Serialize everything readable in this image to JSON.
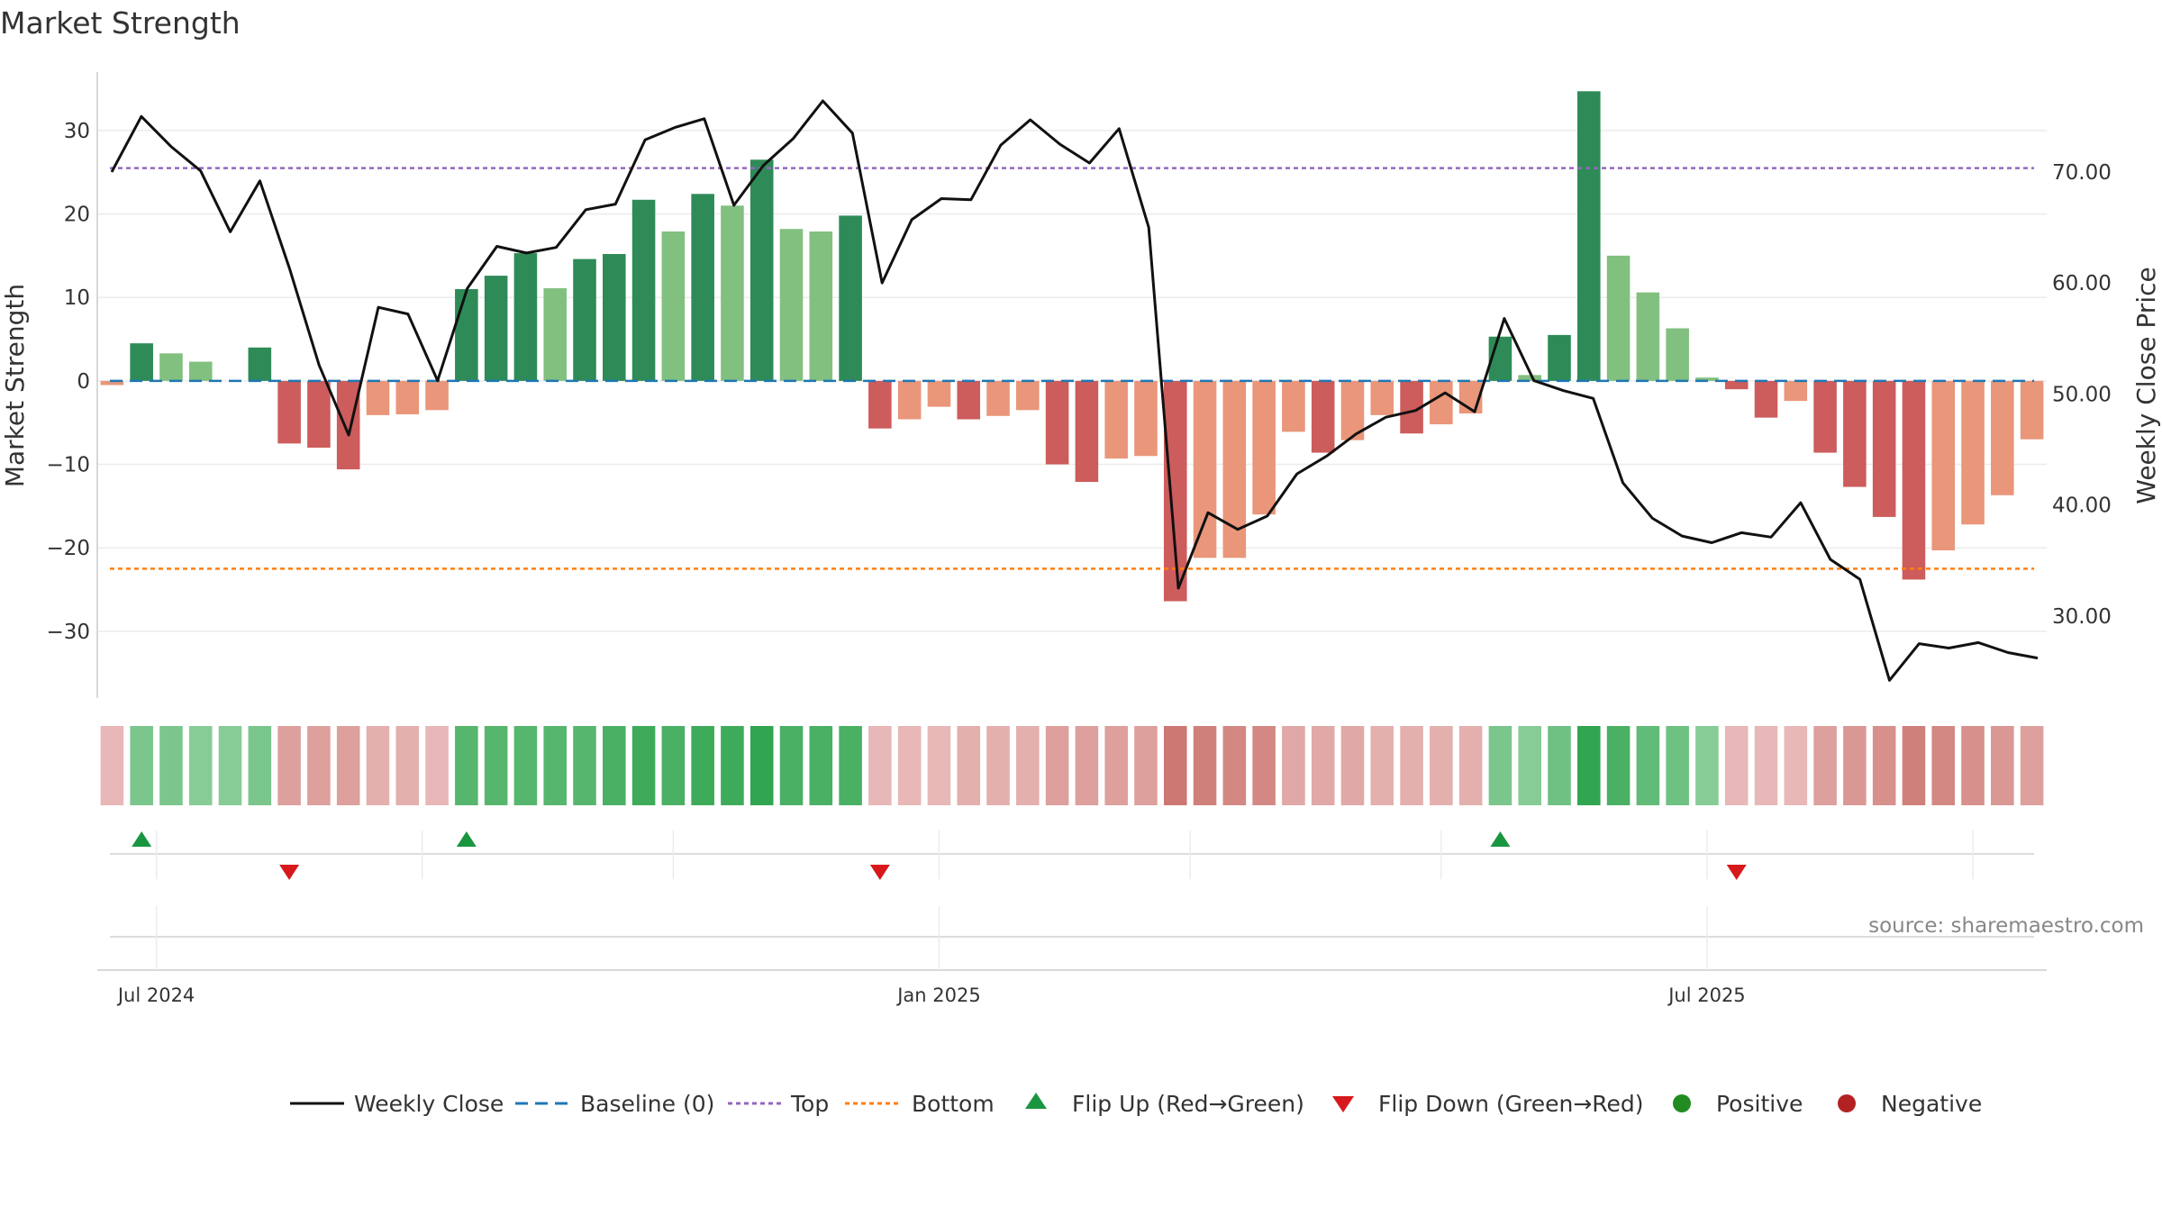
{
  "title": "Market Strength",
  "source": "source: sharemaestro.com",
  "colors": {
    "close_line": "#111111",
    "baseline": "#1f77b4",
    "top": "#9467bd",
    "bottom": "#ff7f0e",
    "strong_positive": "#2e8b57",
    "weak_positive": "#82c07f",
    "strong_negative": "#cd5c5c",
    "weak_negative": "#e9967a",
    "flip_up": "#1a9641",
    "flip_down": "#d7191c",
    "positive": "#228b22",
    "negative": "#b22222"
  },
  "chart_data": {
    "type": "bar",
    "ylabel_left": "Market Strength",
    "ylabel_right": "Weekly Close Price",
    "ylim_left": [
      -38,
      37
    ],
    "ylim_right": [
      22.6,
      79
    ],
    "yticks_left": [
      "30",
      "20",
      "10",
      "0",
      "−10",
      "−20",
      "−30"
    ],
    "yticks_right": [
      "70.00",
      "60.00",
      "50.00",
      "40.00",
      "30.00"
    ],
    "x_tick_labels": [
      "Jul 2024",
      "Jan 2025",
      "Jul 2025"
    ],
    "x_tick_weeks": [
      2,
      28.5,
      54.5
    ],
    "top_line": 25.5,
    "bottom_line": -22.5,
    "baseline": 0,
    "strength": [
      -0.5,
      4.5,
      3.3,
      2.3,
      0,
      4.0,
      -7.5,
      -8.0,
      -10.6,
      -4.1,
      -4.0,
      -3.5,
      11.0,
      12.6,
      15.3,
      11.1,
      14.6,
      15.2,
      21.7,
      17.9,
      22.4,
      21.0,
      26.5,
      18.2,
      17.9,
      19.8,
      -5.7,
      -4.6,
      -3.1,
      -4.6,
      -4.2,
      -3.5,
      -10.0,
      -12.1,
      -9.3,
      -9.0,
      -26.4,
      -21.2,
      -21.2,
      -16.0,
      -6.1,
      -8.6,
      -7.1,
      -4.1,
      -6.3,
      -5.2,
      -3.9,
      5.3,
      0.7,
      5.5,
      34.7,
      15.0,
      10.6,
      6.3,
      0.4,
      -1.0,
      -4.4,
      -2.4,
      -8.6,
      -12.7,
      -16.3,
      -23.8,
      -20.3,
      -17.2,
      -13.7,
      -7.0
    ],
    "strength_shade": [
      "weak",
      "strong",
      "weak",
      "weak",
      "weak",
      "strong",
      "strong",
      "strong",
      "strong",
      "weak",
      "weak",
      "weak",
      "strong",
      "strong",
      "strong",
      "weak",
      "strong",
      "strong",
      "strong",
      "weak",
      "strong",
      "weak",
      "strong",
      "weak",
      "weak",
      "strong",
      "strong",
      "weak",
      "weak",
      "strong",
      "weak",
      "weak",
      "strong",
      "strong",
      "weak",
      "weak",
      "strong",
      "weak",
      "weak",
      "weak",
      "weak",
      "strong",
      "weak",
      "weak",
      "strong",
      "weak",
      "weak",
      "strong",
      "weak",
      "strong",
      "strong",
      "weak",
      "weak",
      "weak",
      "weak",
      "strong",
      "strong",
      "weak",
      "strong",
      "strong",
      "strong",
      "strong",
      "weak",
      "weak",
      "weak",
      "weak"
    ],
    "weekly_close": [
      70.0,
      75.0,
      72.3,
      70.1,
      64.6,
      69.2,
      61.3,
      52.6,
      46.3,
      57.8,
      57.2,
      51.2,
      59.5,
      63.3,
      62.7,
      63.2,
      66.6,
      67.1,
      72.9,
      74.0,
      74.8,
      67.0,
      70.6,
      73.0,
      76.4,
      73.5,
      60.0,
      65.7,
      67.6,
      67.5,
      72.4,
      74.7,
      72.5,
      70.8,
      73.9,
      65.0,
      32.5,
      39.3,
      37.8,
      39.0,
      42.8,
      44.4,
      46.4,
      47.9,
      48.5,
      50.1,
      48.4,
      56.8,
      51.2,
      50.3,
      49.6,
      42.0,
      38.8,
      37.2,
      36.6,
      37.5,
      37.1,
      40.2,
      35.1,
      33.3,
      24.2,
      27.5,
      27.1,
      27.6,
      26.7,
      26.2
    ],
    "heat": [
      -0.2,
      0.4,
      0.4,
      0.3,
      0.3,
      0.4,
      -0.5,
      -0.5,
      -0.5,
      -0.3,
      -0.3,
      -0.2,
      0.7,
      0.7,
      0.7,
      0.7,
      0.7,
      0.8,
      0.9,
      0.8,
      0.9,
      0.9,
      1.0,
      0.8,
      0.8,
      0.8,
      -0.2,
      -0.2,
      -0.2,
      -0.3,
      -0.3,
      -0.3,
      -0.5,
      -0.5,
      -0.5,
      -0.5,
      -1.0,
      -0.9,
      -0.8,
      -0.8,
      -0.4,
      -0.4,
      -0.4,
      -0.3,
      -0.3,
      -0.3,
      -0.3,
      0.4,
      0.3,
      0.5,
      1.5,
      0.8,
      0.6,
      0.5,
      0.3,
      -0.2,
      -0.2,
      -0.2,
      -0.5,
      -0.6,
      -0.7,
      -0.9,
      -0.8,
      -0.7,
      -0.6,
      -0.5
    ],
    "flip_up_weeks": [
      1,
      12,
      47
    ],
    "flip_down_weeks": [
      6,
      26,
      55
    ],
    "legend": [
      "Weekly Close",
      "Baseline (0)",
      "Top",
      "Bottom",
      "Flip Up (Red→Green)",
      "Flip Down (Green→Red)",
      "Positive",
      "Negative"
    ]
  }
}
